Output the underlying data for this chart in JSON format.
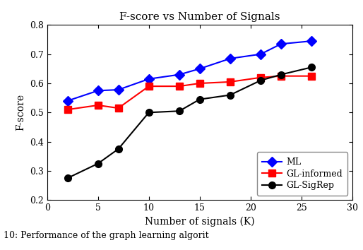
{
  "title": "F-score vs Number of Signals",
  "xlabel": "Number of signals (K)",
  "ylabel": "F-score",
  "caption": "10: Performance of the graph learning algorit",
  "xlim": [
    0,
    30
  ],
  "ylim": [
    0.2,
    0.8
  ],
  "xticks": [
    0,
    5,
    10,
    15,
    20,
    25,
    30
  ],
  "yticks": [
    0.2,
    0.3,
    0.4,
    0.5,
    0.6,
    0.7,
    0.8
  ],
  "series": [
    {
      "label": "ML",
      "color": "#0000ff",
      "marker": "D",
      "markersize": 7,
      "x": [
        2,
        5,
        7,
        10,
        13,
        15,
        18,
        21,
        23,
        26
      ],
      "y": [
        0.54,
        0.575,
        0.578,
        0.615,
        0.63,
        0.65,
        0.685,
        0.7,
        0.735,
        0.745
      ]
    },
    {
      "label": "GL-informed",
      "color": "#ff0000",
      "marker": "s",
      "markersize": 7,
      "x": [
        2,
        5,
        7,
        10,
        13,
        15,
        18,
        21,
        23,
        26
      ],
      "y": [
        0.51,
        0.525,
        0.515,
        0.59,
        0.59,
        0.6,
        0.605,
        0.62,
        0.625,
        0.625
      ]
    },
    {
      "label": "GL-SigRep",
      "color": "#000000",
      "marker": "o",
      "markersize": 7,
      "x": [
        2,
        5,
        7,
        10,
        13,
        15,
        18,
        21,
        23,
        26
      ],
      "y": [
        0.275,
        0.325,
        0.375,
        0.5,
        0.505,
        0.545,
        0.56,
        0.61,
        0.63,
        0.655
      ]
    }
  ],
  "background_color": "#ffffff",
  "grid": false,
  "fig_width": 5.14,
  "fig_height": 3.54,
  "dpi": 100
}
